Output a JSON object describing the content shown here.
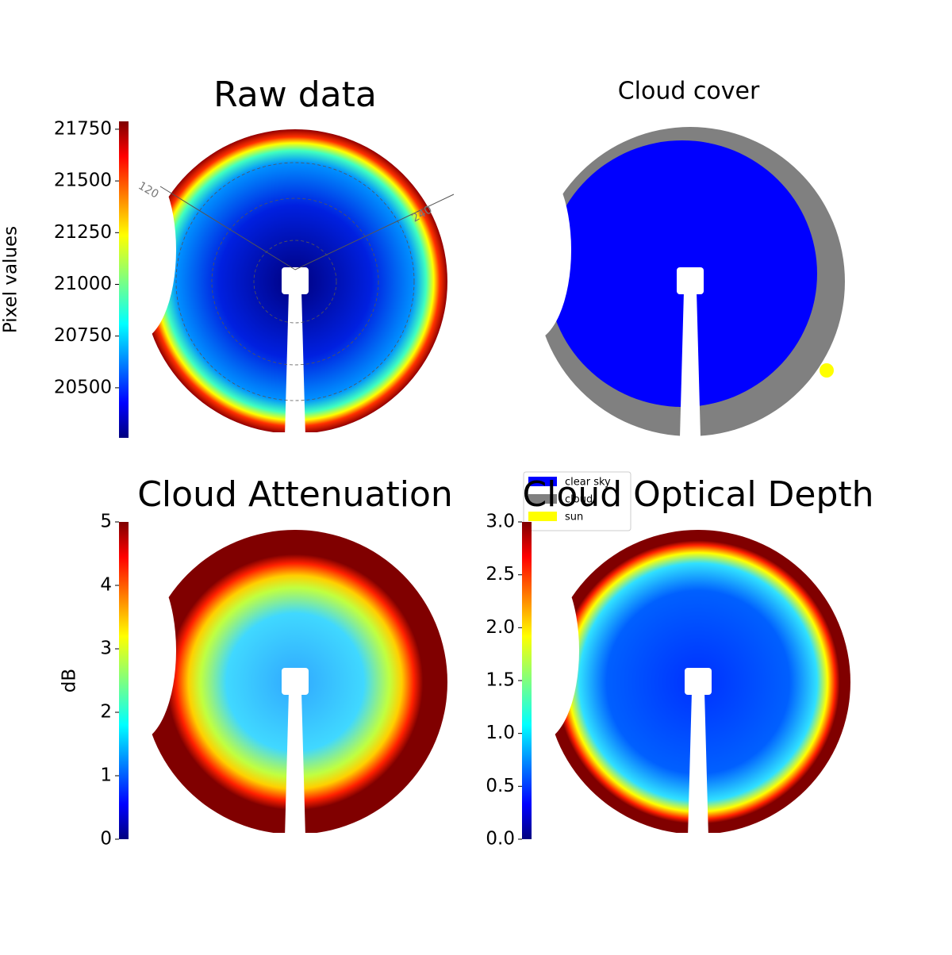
{
  "chart_data": [
    {
      "type": "image",
      "title": "Raw data",
      "colormap": "jet",
      "colorbar": {
        "label": "Pixel values",
        "ylim": [
          20258,
          21788
        ],
        "yticks": [
          20500,
          20750,
          21000,
          21250,
          21500,
          21750
        ]
      },
      "annotations": [
        "120",
        "240"
      ]
    },
    {
      "type": "image",
      "title": "Cloud cover",
      "series": [
        {
          "name": "clear sky",
          "color": "#0000ff"
        },
        {
          "name": "cloud",
          "color": "#808080"
        },
        {
          "name": "sun",
          "color": "#ffff00"
        }
      ],
      "legend": "lower left"
    },
    {
      "type": "image",
      "title": "Cloud Attenuation",
      "colormap": "jet",
      "colorbar": {
        "label": "dB",
        "ylim": [
          0,
          5
        ],
        "yticks": [
          0,
          1,
          2,
          3,
          4,
          5
        ]
      }
    },
    {
      "type": "image",
      "title": "Cloud Optical Depth",
      "colormap": "jet",
      "colorbar": {
        "ylim": [
          0,
          3
        ],
        "yticks": [
          {
            "value": 0,
            "label": "0.0"
          },
          {
            "value": 0.5,
            "label": "0.5"
          },
          {
            "value": 1,
            "label": "1.0"
          },
          {
            "value": 1.5,
            "label": "1.5"
          },
          {
            "value": 2,
            "label": "2.0"
          },
          {
            "value": 2.5,
            "label": "2.5"
          },
          {
            "value": 3,
            "label": "3.0"
          }
        ]
      }
    }
  ]
}
